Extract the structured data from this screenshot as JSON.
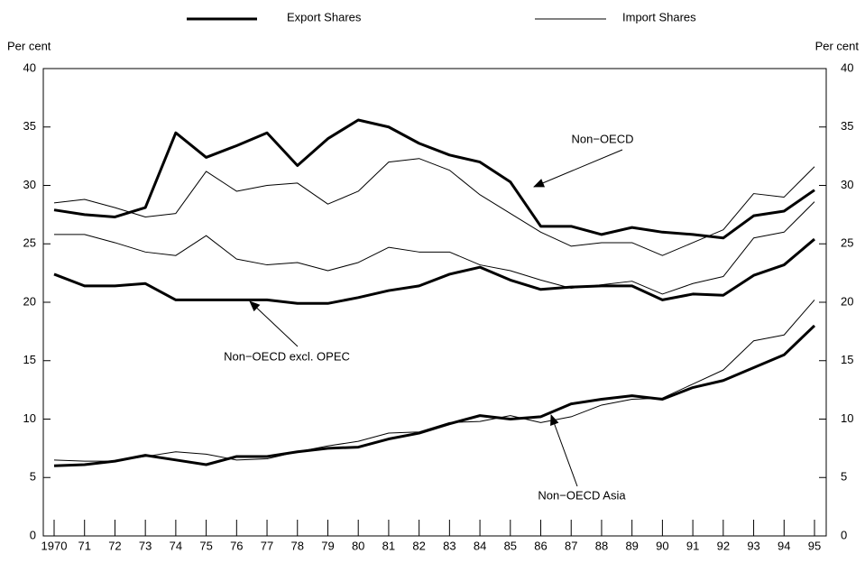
{
  "chart_data": {
    "type": "line",
    "ylabel": "Per cent",
    "y2label": "Per cent",
    "categories": [
      "1970",
      "71",
      "72",
      "73",
      "74",
      "75",
      "76",
      "77",
      "78",
      "79",
      "80",
      "81",
      "82",
      "83",
      "84",
      "85",
      "86",
      "87",
      "88",
      "89",
      "90",
      "91",
      "92",
      "93",
      "94",
      "95"
    ],
    "ylim": [
      0,
      40
    ],
    "yticks": [
      0,
      5,
      10,
      15,
      20,
      25,
      30,
      35,
      40
    ],
    "color": "#000000",
    "legend": [
      {
        "label": "Export Shares",
        "width": 3
      },
      {
        "label": "Import Shares",
        "width": 1
      }
    ],
    "series": [
      {
        "width": 3,
        "values": [
          27.9,
          27.5,
          27.3,
          28.1,
          34.5,
          32.4,
          33.4,
          34.5,
          31.7,
          34.0,
          35.6,
          35.0,
          33.6,
          32.6,
          32.0,
          30.3,
          26.5,
          26.5,
          25.8,
          26.4,
          26.0,
          25.8,
          25.5,
          27.4,
          27.8,
          29.6
        ]
      },
      {
        "width": 1,
        "values": [
          28.5,
          28.8,
          28.1,
          27.3,
          27.6,
          31.2,
          29.5,
          30.0,
          30.2,
          28.4,
          29.5,
          32.0,
          32.3,
          31.3,
          29.2,
          27.6,
          26.0,
          24.8,
          25.1,
          25.1,
          24.0,
          25.1,
          26.2,
          29.3,
          29.0,
          31.6
        ]
      },
      {
        "width": 1,
        "values": [
          25.8,
          25.8,
          25.1,
          24.3,
          24.0,
          25.7,
          23.7,
          23.2,
          23.4,
          22.7,
          23.4,
          24.7,
          24.3,
          24.3,
          23.2,
          22.7,
          21.9,
          21.2,
          21.5,
          21.8,
          20.7,
          21.6,
          22.2,
          25.5,
          26.0,
          28.6
        ]
      },
      {
        "width": 3,
        "values": [
          22.4,
          21.4,
          21.4,
          21.6,
          20.2,
          20.2,
          20.2,
          20.2,
          19.9,
          19.9,
          20.4,
          21.0,
          21.4,
          22.4,
          23.0,
          21.9,
          21.1,
          21.3,
          21.4,
          21.4,
          20.2,
          20.7,
          20.6,
          22.3,
          23.2,
          25.4
        ]
      },
      {
        "width": 3,
        "values": [
          6.0,
          6.1,
          6.4,
          6.9,
          6.5,
          6.1,
          6.8,
          6.8,
          7.2,
          7.5,
          7.6,
          8.3,
          8.8,
          9.6,
          10.3,
          10.0,
          10.2,
          11.3,
          11.7,
          12.0,
          11.7,
          12.7,
          13.3,
          14.4,
          15.5,
          18.0
        ]
      },
      {
        "width": 1,
        "values": [
          6.5,
          6.4,
          6.4,
          6.8,
          7.2,
          7.0,
          6.5,
          6.6,
          7.2,
          7.7,
          8.1,
          8.8,
          8.9,
          9.7,
          9.8,
          10.3,
          9.7,
          10.2,
          11.2,
          11.7,
          11.8,
          13.0,
          14.2,
          16.7,
          17.2,
          20.2
        ]
      }
    ],
    "annotations": [
      "Non−OECD",
      "Non−OECD excl. OPEC",
      "Non−OECD Asia"
    ]
  }
}
